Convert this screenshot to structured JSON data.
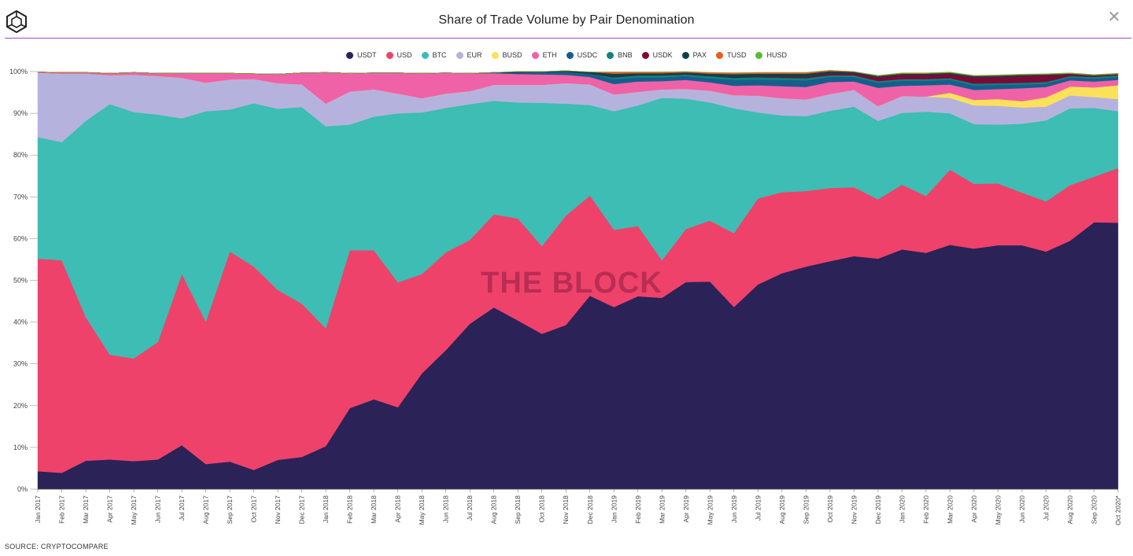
{
  "header": {
    "title": "Share of Trade Volume by Pair Denomination",
    "close_symbol": "✕",
    "logo_icon": "cube-logo-icon"
  },
  "footer": {
    "source": "SOURCE: CRYPTOCOMPARE"
  },
  "watermark": "THE BLOCK",
  "colors": {
    "USDT": "#2b2257",
    "USD": "#ee426a",
    "BTC": "#3dbdb3",
    "EUR": "#b6b2de",
    "BUSD": "#fbe15a",
    "ETH": "#ef62a7",
    "USDC": "#155e8c",
    "BNB": "#11827d",
    "USDK": "#7b0a36",
    "PAX": "#113f48",
    "TUSD": "#f05a24",
    "HUSD": "#5abc2e",
    "accent_rule": "#a349c9"
  },
  "chart_data": {
    "type": "area",
    "stacked": true,
    "percent": true,
    "legend_position": "top-center",
    "grid": false,
    "ylim": [
      0,
      100
    ],
    "yticks": [
      "0%",
      "10%",
      "20%",
      "30%",
      "40%",
      "50%",
      "60%",
      "70%",
      "80%",
      "90%",
      "100%"
    ],
    "categories": [
      "Jan 2017",
      "Feb 2017",
      "Mar 2017",
      "Apr 2017",
      "May 2017",
      "Jun 2017",
      "Jul 2017",
      "Aug 2017",
      "Sep 2017",
      "Oct 2017",
      "Nov 2017",
      "Dec 2017",
      "Jan 2018",
      "Feb 2018",
      "Mar 2018",
      "Apr 2018",
      "May 2018",
      "Jun 2018",
      "Jul 2018",
      "Aug 2018",
      "Sep 2018",
      "Oct 2018",
      "Nov 2018",
      "Dec 2018",
      "Jan 2019",
      "Feb 2019",
      "Mar 2019",
      "Apr 2019",
      "May 2019",
      "Jun 2019",
      "Jul 2019",
      "Aug 2019",
      "Sep 2019",
      "Oct 2019",
      "Nov 2019",
      "Dec 2019",
      "Jan 2020",
      "Feb 2020",
      "Mar 2020",
      "Apr 2020",
      "May 2020",
      "Jun 2020",
      "Jul 2020",
      "Aug 2020",
      "Sep 2020",
      "Oct 2020*"
    ],
    "series": [
      {
        "name": "USDT",
        "values": [
          4.3,
          3.9,
          6.8,
          7.1,
          6.7,
          7.1,
          10.5,
          6.0,
          6.6,
          4.6,
          7.0,
          7.7,
          10.3,
          19.4,
          21.5,
          19.6,
          27.7,
          33.3,
          39.6,
          43.5,
          40.4,
          37.2,
          39.3,
          46.3,
          43.6,
          46.2,
          45.8,
          49.6,
          49.7,
          43.6,
          49.0,
          51.7,
          53.3,
          54.6,
          55.8,
          55.2,
          57.4,
          56.6,
          58.5,
          57.6,
          58.4,
          58.4,
          56.9,
          59.5,
          63.9,
          63.8
        ]
      },
      {
        "name": "USD",
        "values": [
          50.9,
          50.9,
          34.4,
          25.1,
          24.6,
          28.1,
          41.0,
          34.1,
          50.3,
          48.7,
          40.7,
          36.7,
          28.2,
          37.8,
          35.7,
          29.9,
          23.8,
          23.4,
          20.1,
          22.3,
          24.4,
          21.0,
          26.2,
          24.0,
          18.5,
          16.8,
          9.0,
          12.7,
          14.6,
          17.7,
          20.6,
          19.4,
          18.1,
          17.5,
          16.5,
          14.2,
          15.5,
          13.6,
          18.0,
          15.5,
          14.8,
          12.6,
          12.0,
          13.3,
          10.9,
          13.1
        ]
      },
      {
        "name": "BTC",
        "values": [
          29.1,
          28.3,
          47.0,
          60.0,
          59.0,
          54.5,
          37.3,
          50.4,
          34.0,
          39.1,
          43.4,
          47.1,
          48.4,
          30.1,
          32.0,
          40.5,
          38.7,
          34.6,
          32.5,
          27.2,
          27.8,
          34.3,
          26.8,
          21.7,
          28.4,
          28.9,
          38.9,
          31.2,
          28.3,
          29.9,
          20.6,
          18.4,
          17.9,
          18.5,
          19.3,
          18.8,
          17.2,
          20.2,
          13.5,
          14.3,
          14.1,
          16.5,
          19.4,
          18.4,
          16.5,
          13.6
        ]
      },
      {
        "name": "EUR",
        "values": [
          15.4,
          16.4,
          11.3,
          6.9,
          8.9,
          9.2,
          9.7,
          6.8,
          7.2,
          5.8,
          6.1,
          5.4,
          5.4,
          7.9,
          6.5,
          4.7,
          3.4,
          3.4,
          3.1,
          3.8,
          4.2,
          4.3,
          4.9,
          4.9,
          4.0,
          3.2,
          2.0,
          2.3,
          2.8,
          3.1,
          4.0,
          4.1,
          4.0,
          4.0,
          4.0,
          3.5,
          4.0,
          3.6,
          3.7,
          4.5,
          4.5,
          3.9,
          3.3,
          3.1,
          2.6,
          2.9
        ]
      },
      {
        "name": "BUSD",
        "values": [
          0,
          0,
          0,
          0,
          0,
          0,
          0,
          0,
          0,
          0,
          0,
          0,
          0,
          0,
          0,
          0,
          0,
          0,
          0,
          0,
          0,
          0,
          0,
          0,
          0,
          0,
          0,
          0,
          0,
          0,
          0,
          0,
          0,
          0,
          0,
          0,
          0,
          0,
          1.2,
          1.3,
          1.6,
          1.5,
          2.2,
          2.1,
          2.3,
          3.3
        ]
      },
      {
        "name": "ETH",
        "values": [
          0.2,
          0.3,
          0.3,
          0.5,
          0.6,
          0.7,
          1.1,
          2.3,
          1.5,
          1.3,
          2.2,
          2.8,
          7.5,
          4.4,
          4.0,
          5.0,
          6.0,
          5.0,
          4.3,
          2.8,
          2.6,
          2.5,
          2.0,
          1.8,
          2.5,
          2.5,
          2.0,
          2.2,
          2.0,
          2.3,
          2.5,
          2.9,
          3.0,
          2.9,
          2.0,
          4.4,
          2.5,
          2.7,
          2.0,
          2.4,
          2.4,
          3.1,
          2.5,
          1.5,
          1.4,
          1.3
        ]
      },
      {
        "name": "USDC",
        "values": [
          0,
          0,
          0,
          0,
          0,
          0,
          0,
          0,
          0,
          0,
          0,
          0,
          0,
          0,
          0,
          0,
          0,
          0,
          0,
          0.2,
          0.4,
          0.6,
          0.8,
          0.8,
          1.2,
          1.0,
          0.9,
          0.9,
          1.0,
          1.4,
          1.4,
          1.5,
          1.6,
          1.2,
          1.1,
          1.2,
          1.2,
          1.1,
          1.1,
          1.1,
          1.0,
          0.9,
          0.8,
          0.7,
          0.7,
          0.7
        ]
      },
      {
        "name": "BNB",
        "values": [
          0,
          0,
          0,
          0,
          0,
          0,
          0,
          0,
          0,
          0,
          0,
          0,
          0,
          0,
          0,
          0,
          0,
          0,
          0,
          0,
          0,
          0,
          0,
          0,
          0.4,
          0.5,
          0.5,
          0.4,
          0.5,
          0.5,
          0.5,
          0.5,
          0.5,
          0.4,
          0.4,
          0.4,
          0.4,
          0.4,
          0.4,
          0.4,
          0.4,
          0.4,
          0.4,
          0.3,
          0.4,
          0.4
        ]
      },
      {
        "name": "USDK",
        "values": [
          0,
          0,
          0,
          0,
          0,
          0,
          0,
          0,
          0,
          0,
          0,
          0,
          0,
          0,
          0,
          0,
          0,
          0,
          0,
          0,
          0,
          0,
          0,
          0,
          0,
          0,
          0,
          0,
          0,
          0,
          0.1,
          0.2,
          0.3,
          0.4,
          0.5,
          0.9,
          1.0,
          1.0,
          1.0,
          1.5,
          1.5,
          1.6,
          1.6,
          0.4,
          0.2,
          0.2
        ]
      },
      {
        "name": "PAX",
        "values": [
          0,
          0,
          0,
          0,
          0,
          0,
          0,
          0,
          0,
          0,
          0,
          0,
          0,
          0,
          0,
          0,
          0,
          0,
          0,
          0,
          0.2,
          0.1,
          0.2,
          0.4,
          0.9,
          0.5,
          0.5,
          0.5,
          0.6,
          0.9,
          0.8,
          0.8,
          0.8,
          0.6,
          0.3,
          0.3,
          0.3,
          0.3,
          0.3,
          0.3,
          0.3,
          0.3,
          0.2,
          0.2,
          0.2,
          0.1
        ]
      },
      {
        "name": "TUSD",
        "values": [
          0,
          0,
          0,
          0,
          0,
          0,
          0,
          0,
          0,
          0,
          0,
          0,
          0,
          0,
          0,
          0,
          0,
          0,
          0,
          0,
          0,
          0,
          0,
          0,
          0.4,
          0.3,
          0.3,
          0.2,
          0.3,
          0.3,
          0.3,
          0.3,
          0.3,
          0.2,
          0.1,
          0.1,
          0.1,
          0.1,
          0.1,
          0.1,
          0.1,
          0.1,
          0.1,
          0.1,
          0.1,
          0.1
        ]
      },
      {
        "name": "HUSD",
        "values": [
          0,
          0,
          0,
          0,
          0,
          0,
          0,
          0,
          0,
          0,
          0,
          0,
          0,
          0,
          0,
          0,
          0,
          0,
          0,
          0,
          0,
          0,
          0,
          0,
          0,
          0,
          0,
          0,
          0,
          0,
          0,
          0,
          0,
          0,
          0,
          0.1,
          0.1,
          0.1,
          0.1,
          0.1,
          0.1,
          0.1,
          0.1,
          0.1,
          0.1,
          0.1
        ]
      }
    ]
  }
}
